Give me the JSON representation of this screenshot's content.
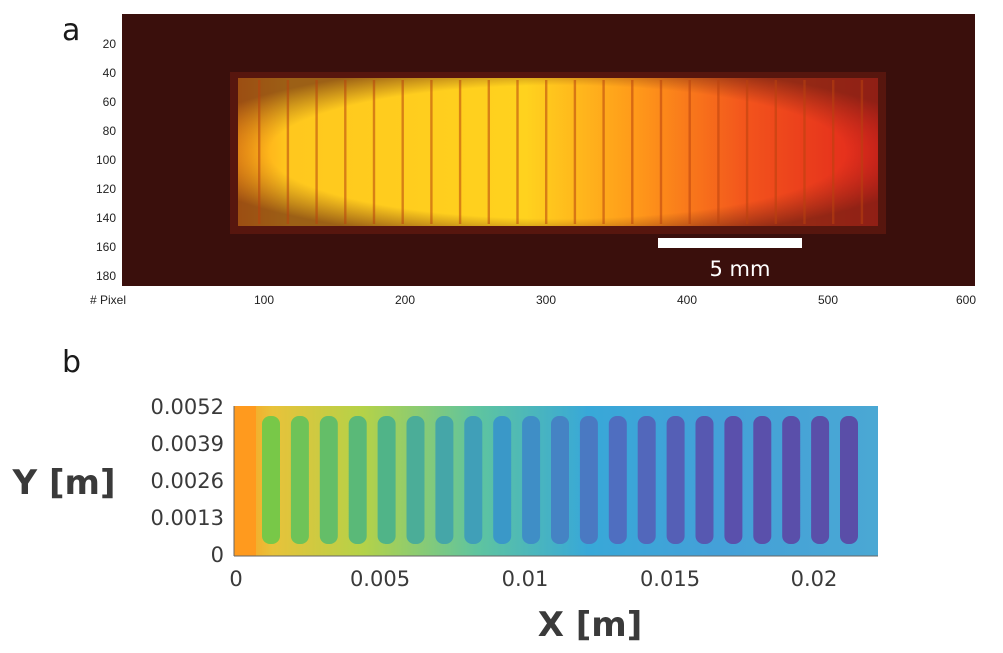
{
  "figure": {
    "panel_a": {
      "label": "a",
      "x_axis_label": "# Pixel",
      "x_ticks": [
        "100",
        "200",
        "300",
        "400",
        "500",
        "600"
      ],
      "y_ticks": [
        "20",
        "40",
        "60",
        "80",
        "100",
        "120",
        "140",
        "160",
        "180"
      ],
      "scale_bar_label": "5 mm",
      "colors": {
        "background": "#3a0f0c",
        "bright": "#ffd21e",
        "mid": "#ff8a1a",
        "dim": "#e1261c"
      }
    },
    "panel_b": {
      "label": "b",
      "x_axis_label": "X [m]",
      "y_axis_label": "Y [m]",
      "x_ticks": [
        "0",
        "0.005",
        "0.01",
        "0.015",
        "0.02"
      ],
      "y_ticks": [
        "0.0052",
        "0.0039",
        "0.0026",
        "0.0013",
        "0"
      ],
      "colors": {
        "hot": "#ff9a1e",
        "warm": "#b4d248",
        "cool": "#38a8d8",
        "cold": "#5a4ea8"
      }
    }
  }
}
